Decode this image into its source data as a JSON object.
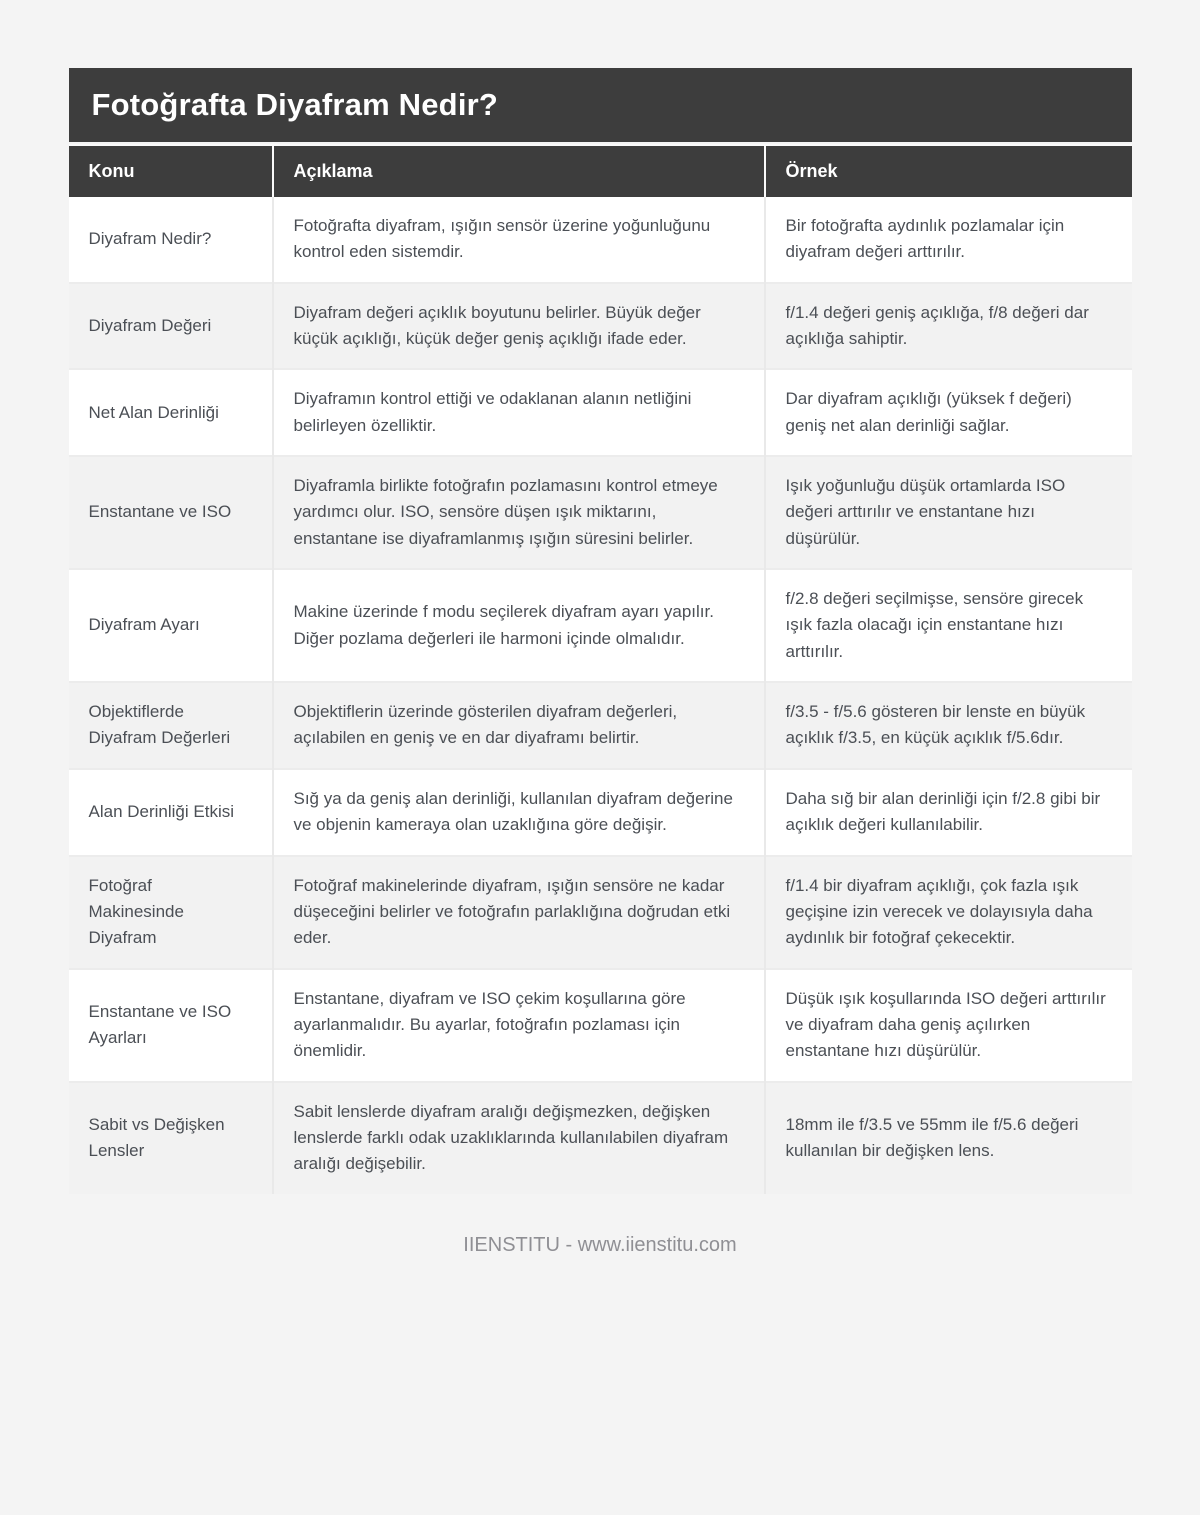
{
  "page": {
    "title": "Fotoğrafta Diyafram Nedir?",
    "footer": "IIENSTITU - www.iienstitu.com"
  },
  "colors": {
    "header_bg": "#3d3d3d",
    "header_text": "#ffffff",
    "page_bg": "#f4f4f4",
    "row_stripe": "#f2f2f2",
    "body_text": "#4b4f55",
    "footer_text": "#8f8f94"
  },
  "table": {
    "columns": [
      "Konu",
      "Açıklama",
      "Örnek"
    ],
    "rows": [
      {
        "konu": "Diyafram Nedir?",
        "aciklama": "Fotoğrafta diyafram, ışığın sensör üzerine yoğunluğunu kontrol eden sistemdir.",
        "ornek": "Bir fotoğrafta aydınlık pozlamalar için diyafram değeri arttırılır."
      },
      {
        "konu": "Diyafram Değeri",
        "aciklama": "Diyafram değeri açıklık boyutunu belirler. Büyük değer küçük açıklığı, küçük değer geniş açıklığı ifade eder.",
        "ornek": "f/1.4 değeri geniş açıklığa, f/8 değeri dar açıklığa sahiptir."
      },
      {
        "konu": "Net Alan Derinliği",
        "aciklama": "Diyaframın kontrol ettiği ve odaklanan alanın netliğini belirleyen özelliktir.",
        "ornek": "Dar diyafram açıklığı (yüksek f değeri) geniş net alan derinliği sağlar."
      },
      {
        "konu": "Enstantane ve ISO",
        "aciklama": "Diyaframla birlikte fotoğrafın pozlamasını kontrol etmeye yardımcı olur. ISO, sensöre düşen ışık miktarını, enstantane ise diyaframlanmış ışığın süresini belirler.",
        "ornek": "Işık yoğunluğu düşük ortamlarda ISO değeri arttırılır ve enstantane hızı düşürülür."
      },
      {
        "konu": "Diyafram Ayarı",
        "aciklama": "Makine üzerinde f modu seçilerek diyafram ayarı yapılır. Diğer pozlama değerleri ile harmoni içinde olmalıdır.",
        "ornek": "f/2.8 değeri seçilmişse, sensöre girecek ışık fazla olacağı için enstantane hızı arttırılır."
      },
      {
        "konu": "Objektiflerde Diyafram Değerleri",
        "aciklama": "Objektiflerin üzerinde gösterilen diyafram değerleri, açılabilen en geniş ve en dar diyaframı belirtir.",
        "ornek": "f/3.5 - f/5.6 gösteren bir lenste en büyük açıklık f/3.5, en küçük açıklık f/5.6dır."
      },
      {
        "konu": "Alan Derinliği Etkisi",
        "aciklama": "Sığ ya da geniş alan derinliği, kullanılan diyafram değerine ve objenin kameraya olan uzaklığına göre değişir.",
        "ornek": "Daha sığ bir alan derinliği için f/2.8 gibi bir açıklık değeri kullanılabilir."
      },
      {
        "konu": "Fotoğraf Makinesinde Diyafram",
        "aciklama": "Fotoğraf makinelerinde diyafram, ışığın sensöre ne kadar düşeceğini belirler ve fotoğrafın parlaklığına doğrudan etki eder.",
        "ornek": "f/1.4 bir diyafram açıklığı, çok fazla ışık geçişine izin verecek ve dolayısıyla daha aydınlık bir fotoğraf çekecektir."
      },
      {
        "konu": "Enstantane ve ISO Ayarları",
        "aciklama": "Enstantane, diyafram ve ISO çekim koşullarına göre ayarlanmalıdır. Bu ayarlar, fotoğrafın pozlaması için önemlidir.",
        "ornek": "Düşük ışık koşullarında ISO değeri arttırılır ve diyafram daha geniş açılırken enstantane hızı düşürülür."
      },
      {
        "konu": "Sabit vs Değişken Lensler",
        "aciklama": "Sabit lenslerde diyafram aralığı değişmezken, değişken lenslerde farklı odak uzaklıklarında kullanılabilen diyafram aralığı değişebilir.",
        "ornek": "18mm ile f/3.5 ve 55mm ile f/5.6 değeri kullanılan bir değişken lens."
      }
    ]
  }
}
